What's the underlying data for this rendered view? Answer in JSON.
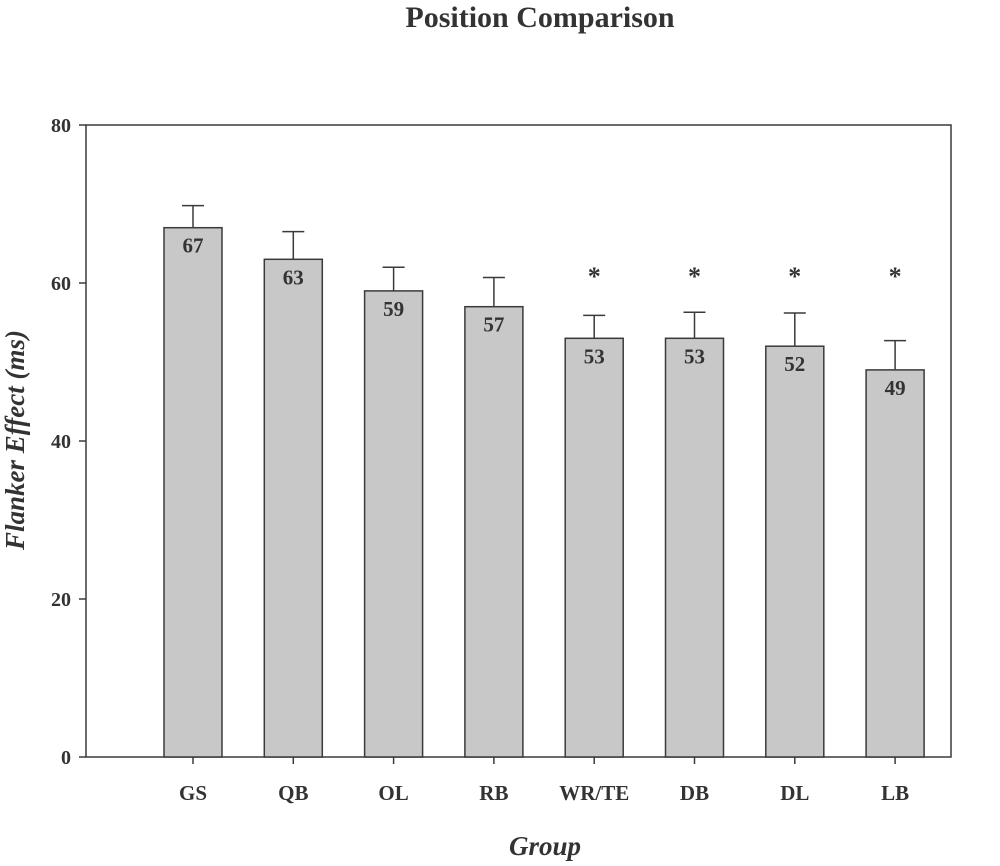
{
  "chart_data": {
    "type": "bar",
    "title": "Position Comparison",
    "xlabel": "Group",
    "ylabel": "Flanker Effect (ms)",
    "categories": [
      "GS",
      "QB",
      "OL",
      "RB",
      "WR/TE",
      "DB",
      "DL",
      "LB"
    ],
    "values": [
      67,
      63,
      59,
      57,
      53,
      53,
      52,
      49
    ],
    "value_labels": [
      "67",
      "63",
      "59",
      "57",
      "53",
      "53",
      "52",
      "49"
    ],
    "error_upper": [
      69.8,
      66.5,
      62.0,
      60.7,
      55.9,
      56.3,
      56.2,
      52.7
    ],
    "significance": [
      "",
      "",
      "",
      "",
      "*",
      "*",
      "*",
      "*"
    ],
    "ylim": [
      0,
      80
    ],
    "yticks": [
      "0",
      "20",
      "40",
      "60",
      "80"
    ],
    "grid": false,
    "legend": "none",
    "colors": {
      "bar_fill": "#c8c8c8",
      "bar_stroke": "#3a3a3a",
      "text": "#333333"
    }
  }
}
